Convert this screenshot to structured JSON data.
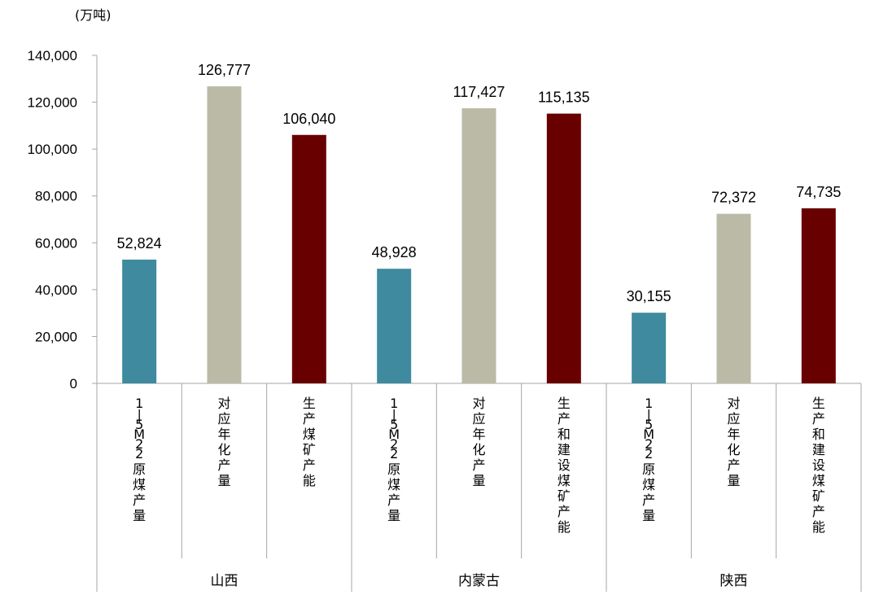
{
  "chart_data": {
    "type": "bar",
    "unit_label": "(万吨)",
    "y_ticks": [
      "0",
      "20,000",
      "40,000",
      "60,000",
      "80,000",
      "100,000",
      "120,000",
      "140,000"
    ],
    "ylim": [
      0,
      140000
    ],
    "groups": [
      {
        "name": "山西",
        "bars": [
          {
            "category": "1-5M22原煤产量",
            "value": 52824,
            "label": "52,824",
            "color": "#3F8A9F"
          },
          {
            "category": "对应年化产量",
            "value": 126777,
            "label": "126,777",
            "color": "#BBBAA7"
          },
          {
            "category": "生产煤矿产能",
            "value": 106040,
            "label": "106,040",
            "color": "#680000"
          }
        ]
      },
      {
        "name": "内蒙古",
        "bars": [
          {
            "category": "1-5M22原煤产量",
            "value": 48928,
            "label": "48,928",
            "color": "#3F8A9F"
          },
          {
            "category": "对应年化产量",
            "value": 117427,
            "label": "117,427",
            "color": "#BBBAA7"
          },
          {
            "category": "生产和建设煤矿产能",
            "value": 115135,
            "label": "115,135",
            "color": "#680000"
          }
        ]
      },
      {
        "name": "陕西",
        "bars": [
          {
            "category": "1-5M22原煤产量",
            "value": 30155,
            "label": "30,155",
            "color": "#3F8A9F"
          },
          {
            "category": "对应年化产量",
            "value": 72372,
            "label": "72,372",
            "color": "#BBBAA7"
          },
          {
            "category": "生产和建设煤矿产能",
            "value": 74735,
            "label": "74,735",
            "color": "#680000"
          }
        ]
      }
    ],
    "grid": false,
    "legend": "none"
  }
}
